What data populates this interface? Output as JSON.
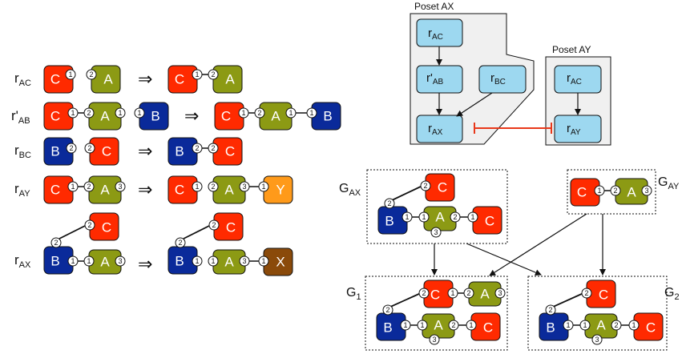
{
  "rules": {
    "r_ac": {
      "base": "r",
      "sub": "AC"
    },
    "r_ab": {
      "base": "r'",
      "sub": "AB"
    },
    "r_bc": {
      "base": "r",
      "sub": "BC"
    },
    "r_ay": {
      "base": "r",
      "sub": "AY"
    },
    "r_ax": {
      "base": "r",
      "sub": "AX"
    },
    "implies": "⇒"
  },
  "agents": {
    "C": "C",
    "A": "A",
    "B": "B",
    "Y": "Y",
    "X": "X"
  },
  "sites": {
    "s1": "1",
    "s2": "2",
    "s3": "3"
  },
  "posets": {
    "ax": {
      "title": "Poset AX",
      "nodes": {
        "r_ac": {
          "base": "r",
          "sub": "AC"
        },
        "r_ab": {
          "base": "r'",
          "sub": "AB"
        },
        "r_bc": {
          "base": "r",
          "sub": "BC"
        },
        "r_ax": {
          "base": "r",
          "sub": "AX"
        }
      }
    },
    "ay": {
      "title": "Poset AY",
      "nodes": {
        "r_ac": {
          "base": "r",
          "sub": "AC"
        },
        "r_ay": {
          "base": "r",
          "sub": "AY"
        }
      }
    }
  },
  "graphs": {
    "g_ax": {
      "base": "G",
      "sub": "AX"
    },
    "g_ay": {
      "base": "G",
      "sub": "AY"
    },
    "g_1": {
      "base": "G",
      "sub": "1"
    },
    "g_2": {
      "base": "G",
      "sub": "2"
    }
  },
  "colors": {
    "C": "#ff2a00",
    "A": "#8c9a14",
    "B": "#0a2a9a",
    "Y": "#ff9a1a",
    "X": "#8a4a0a",
    "node": "#9dd8f0",
    "inhibit": "#e8381a",
    "panel": "#f0f0f0"
  }
}
